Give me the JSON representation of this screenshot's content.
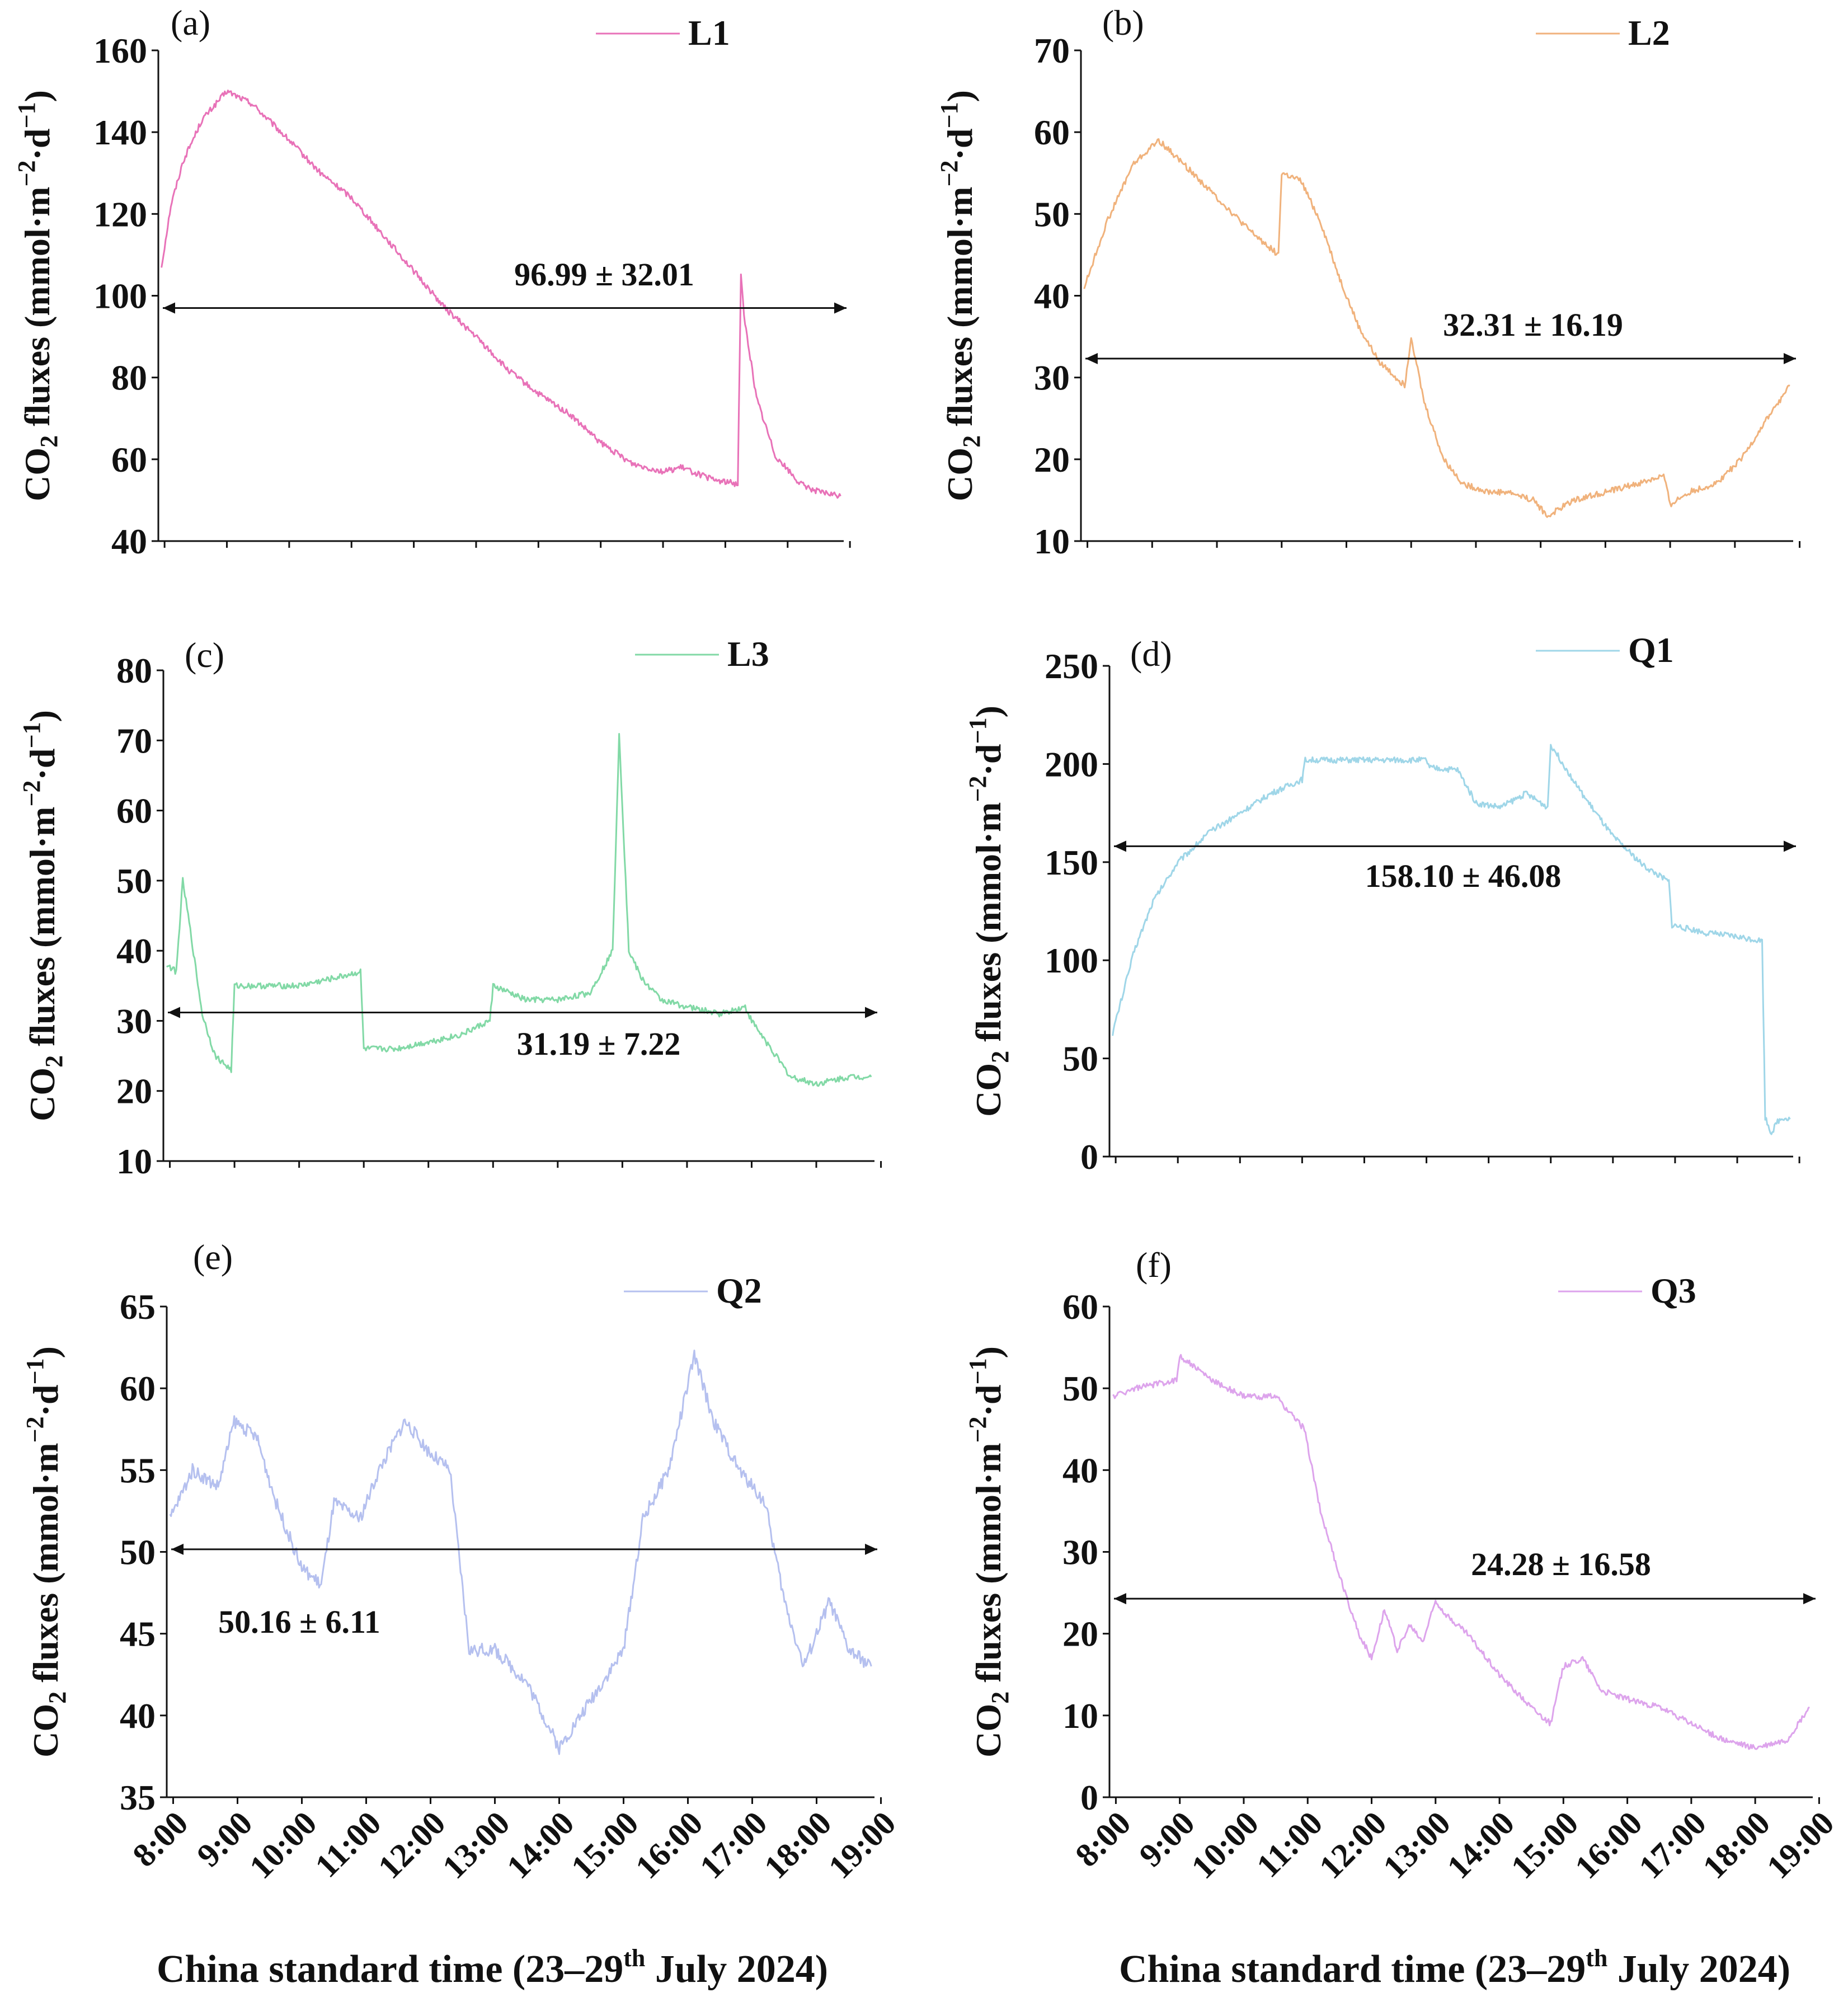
{
  "figure": {
    "xlabel_main": "China standard time (23–29",
    "xlabel_sup": "th",
    "xlabel_end": " July 2024)",
    "ylabel_parts": {
      "co": "CO",
      "sub2": "2",
      "mid": " fluxes (mmol·m",
      "sup1": "−2",
      "mid2": "·d",
      "sup2": "−1",
      "end": ")"
    }
  },
  "chart_data": [
    {
      "type": "line",
      "panel": "(a)",
      "series_name": "L1",
      "color": "#e872b8",
      "x_ticks": [
        "8:00",
        "9:00",
        "10:00",
        "11:00",
        "12:00",
        "13:00",
        "14:00",
        "15:00",
        "16:00",
        "17:00",
        "18:00",
        "19:00"
      ],
      "y_ticks": [
        40,
        60,
        80,
        100,
        120,
        140,
        160
      ],
      "ylim": [
        40,
        160
      ],
      "xlim": [
        7.9,
        18.9
      ],
      "mean": 96.99,
      "annotation": "96.99 ± 32.01",
      "x": [
        7.95,
        8.1,
        8.3,
        8.6,
        9.0,
        9.4,
        10.0,
        10.5,
        11.0,
        11.5,
        12.0,
        12.5,
        13.0,
        13.5,
        14.0,
        14.5,
        15.0,
        15.5,
        16.0,
        16.3,
        16.8,
        17.2,
        17.25,
        17.3,
        17.5,
        17.8,
        18.2,
        18.5,
        18.85
      ],
      "y": [
        107,
        122,
        133,
        143,
        150,
        147,
        138,
        130,
        124,
        115,
        106,
        97,
        90,
        82,
        76,
        71,
        64,
        59,
        57,
        58,
        55,
        54,
        105,
        95,
        75,
        61,
        54,
        52,
        51
      ]
    },
    {
      "type": "line",
      "panel": "(b)",
      "series_name": "L2",
      "color": "#f0b27c",
      "x_ticks": [
        "8:00",
        "9:00",
        "10:00",
        "11:00",
        "12:00",
        "13:00",
        "14:00",
        "15:00",
        "16:00",
        "17:00",
        "18:00",
        "19:00"
      ],
      "y_ticks": [
        10,
        20,
        30,
        40,
        50,
        60,
        70
      ],
      "ylim": [
        10,
        70
      ],
      "xlim": [
        7.9,
        18.9
      ],
      "mean": 32.31,
      "annotation": "32.31 ± 16.19",
      "x": [
        7.95,
        8.3,
        8.7,
        9.1,
        9.5,
        10.0,
        10.5,
        10.95,
        11.0,
        11.3,
        11.6,
        11.9,
        12.2,
        12.5,
        12.9,
        13.0,
        13.2,
        13.5,
        13.8,
        14.2,
        14.5,
        14.9,
        15.1,
        15.5,
        16.0,
        16.5,
        16.9,
        17.0,
        17.3,
        17.7,
        18.1,
        18.5,
        18.85
      ],
      "y": [
        41,
        49,
        56,
        59,
        56,
        52,
        48,
        45,
        55,
        54,
        49,
        42,
        36,
        32,
        29,
        35,
        27,
        20,
        17,
        16,
        16,
        15,
        13,
        15,
        16,
        17,
        18,
        14.5,
        16,
        17,
        20,
        25,
        29
      ]
    },
    {
      "type": "line",
      "panel": "(c)",
      "series_name": "L3",
      "color": "#82d9a6",
      "x_ticks": [
        "8:00",
        "9:00",
        "10:00",
        "11:00",
        "12:00",
        "13:00",
        "14:00",
        "15:00",
        "16:00",
        "17:00",
        "18:00",
        "19:00"
      ],
      "y_ticks": [
        10,
        20,
        30,
        40,
        50,
        60,
        70,
        80
      ],
      "ylim": [
        10,
        80
      ],
      "xlim": [
        7.9,
        18.9
      ],
      "mean": 31.19,
      "annotation": "31.19 ± 7.22",
      "x": [
        7.95,
        8.1,
        8.2,
        8.3,
        8.5,
        8.7,
        8.95,
        9.0,
        9.5,
        10.0,
        10.5,
        10.95,
        11.0,
        11.5,
        12.0,
        12.5,
        12.95,
        13.0,
        13.5,
        14.0,
        14.5,
        14.85,
        14.95,
        15.1,
        15.3,
        15.6,
        16.0,
        16.5,
        16.9,
        17.0,
        17.3,
        17.6,
        18.0,
        18.5,
        18.85
      ],
      "y": [
        38,
        37,
        50,
        44,
        31,
        25,
        23,
        35,
        35,
        35,
        36,
        37,
        26,
        26,
        27,
        28,
        30,
        35,
        33,
        33,
        34,
        40,
        71,
        40,
        36,
        33,
        32,
        31,
        32,
        30,
        26,
        22,
        21,
        22,
        22
      ]
    },
    {
      "type": "line",
      "panel": "(d)",
      "series_name": "Q1",
      "color": "#9fd6e8",
      "x_ticks": [
        "8:00",
        "9:00",
        "10:00",
        "11:00",
        "12:00",
        "13:00",
        "14:00",
        "15:00",
        "16:00",
        "17:00",
        "18:00",
        "19:00"
      ],
      "y_ticks": [
        0,
        50,
        100,
        150,
        200,
        250
      ],
      "ylim": [
        0,
        250
      ],
      "xlim": [
        7.9,
        18.9
      ],
      "mean": 158.1,
      "annotation": "158.10 ± 46.08",
      "x": [
        7.95,
        8.3,
        8.6,
        9.0,
        9.5,
        10.0,
        10.5,
        11.0,
        11.05,
        12.0,
        13.0,
        13.05,
        13.5,
        13.8,
        14.2,
        14.6,
        14.95,
        15.0,
        15.5,
        16.0,
        16.5,
        16.9,
        16.95,
        17.5,
        18.0,
        18.4,
        18.45,
        18.55,
        18.65,
        18.75,
        18.85
      ],
      "y": [
        63,
        105,
        130,
        150,
        165,
        175,
        185,
        192,
        202,
        202,
        202,
        198,
        197,
        180,
        178,
        185,
        178,
        210,
        185,
        163,
        148,
        140,
        118,
        114,
        112,
        110,
        20,
        12,
        18,
        20,
        19
      ]
    },
    {
      "type": "line",
      "panel": "(e)",
      "series_name": "Q2",
      "color": "#b5c0ef",
      "x_ticks": [
        "8:00",
        "9:00",
        "10:00",
        "11:00",
        "12:00",
        "13:00",
        "14:00",
        "15:00",
        "16:00",
        "17:00",
        "18:00",
        "19:00"
      ],
      "y_ticks": [
        35,
        40,
        45,
        50,
        55,
        60,
        65
      ],
      "ylim": [
        35,
        65
      ],
      "xlim": [
        7.9,
        18.9
      ],
      "mean": 50.16,
      "annotation": "50.16 ± 6.11",
      "x": [
        7.95,
        8.3,
        8.7,
        8.95,
        9.3,
        9.6,
        10.0,
        10.3,
        10.5,
        10.9,
        11.2,
        11.6,
        12.0,
        12.3,
        12.6,
        13.0,
        13.5,
        14.0,
        14.5,
        15.0,
        15.3,
        15.7,
        16.1,
        16.4,
        16.8,
        17.2,
        17.5,
        17.8,
        18.0,
        18.2,
        18.5,
        18.85
      ],
      "y": [
        52,
        55,
        54,
        58,
        57,
        53,
        49,
        48,
        53,
        52,
        55,
        58,
        56,
        55,
        44,
        44,
        42,
        38,
        41,
        44,
        52,
        55,
        62,
        58,
        55,
        53,
        47,
        43,
        45,
        47,
        44,
        43
      ]
    },
    {
      "type": "line",
      "panel": "(f)",
      "series_name": "Q3",
      "color": "#dda4ec",
      "x_ticks": [
        "8:00",
        "9:00",
        "10:00",
        "11:00",
        "12:00",
        "13:00",
        "14:00",
        "15:00",
        "16:00",
        "17:00",
        "18:00",
        "19:00"
      ],
      "y_ticks": [
        0,
        10,
        20,
        30,
        40,
        50,
        60
      ],
      "ylim": [
        0,
        60
      ],
      "xlim": [
        7.9,
        18.9
      ],
      "mean": 24.28,
      "annotation": "24.28 ± 16.58",
      "x": [
        7.95,
        8.3,
        8.95,
        9.0,
        9.5,
        10.0,
        10.5,
        10.95,
        11.2,
        11.5,
        11.8,
        12.0,
        12.2,
        12.4,
        12.6,
        12.8,
        13.0,
        13.2,
        13.5,
        13.8,
        14.0,
        14.5,
        14.8,
        15.0,
        15.3,
        15.6,
        16.0,
        16.5,
        17.0,
        17.5,
        18.0,
        18.5,
        18.85
      ],
      "y": [
        49,
        50,
        51,
        54,
        51,
        49,
        49,
        45,
        35,
        27,
        20,
        17,
        23,
        18,
        21,
        19,
        24,
        22,
        20,
        17,
        15,
        11,
        9,
        16,
        17,
        13,
        12,
        11,
        9,
        7,
        6,
        7,
        11
      ]
    }
  ]
}
